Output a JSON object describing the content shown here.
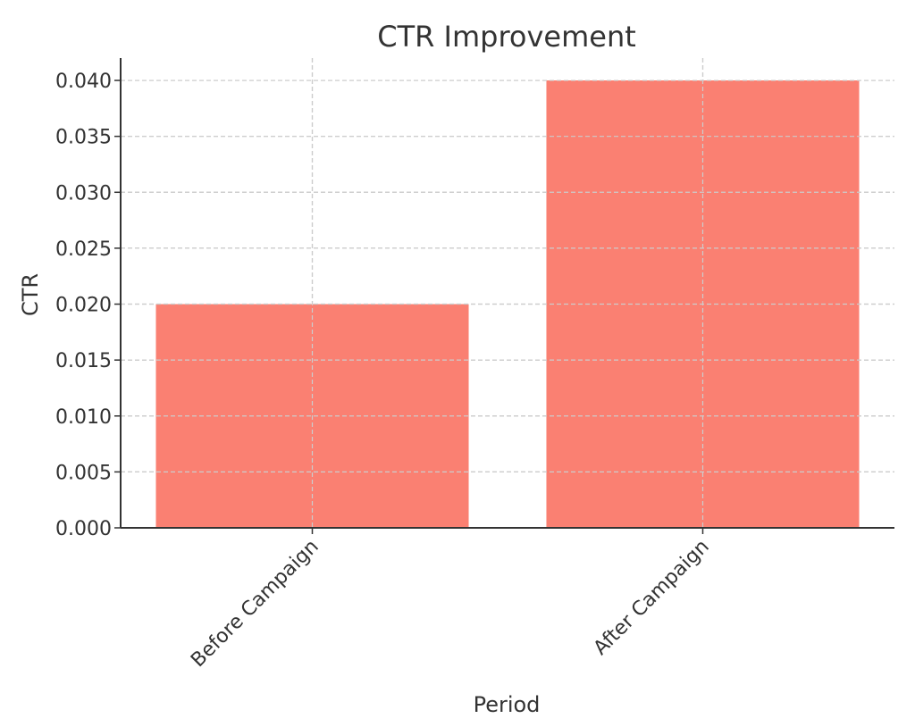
{
  "chart_data": {
    "type": "bar",
    "title": "CTR Improvement",
    "xlabel": "Period",
    "ylabel": "CTR",
    "categories": [
      "Before Campaign",
      "After Campaign"
    ],
    "values": [
      0.02,
      0.04
    ],
    "ylim": [
      0,
      0.042
    ],
    "yticks": [
      "0.000",
      "0.005",
      "0.010",
      "0.015",
      "0.020",
      "0.025",
      "0.030",
      "0.035",
      "0.040"
    ],
    "bar_color": "#FA8072",
    "grid": true,
    "legend": "none"
  }
}
